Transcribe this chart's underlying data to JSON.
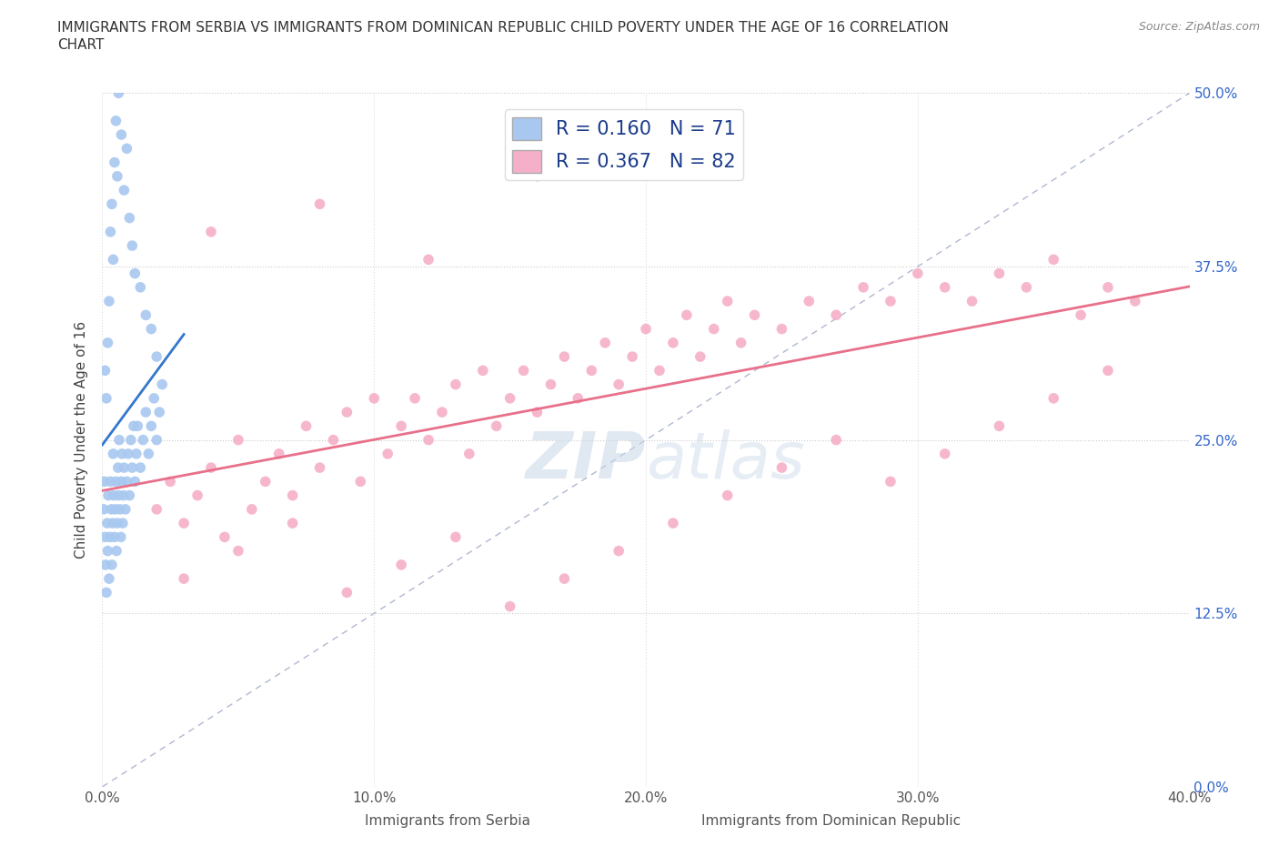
{
  "title_line1": "IMMIGRANTS FROM SERBIA VS IMMIGRANTS FROM DOMINICAN REPUBLIC CHILD POVERTY UNDER THE AGE OF 16 CORRELATION",
  "title_line2": "CHART",
  "source": "Source: ZipAtlas.com",
  "xlabel_serbia": "Immigrants from Serbia",
  "xlabel_dr": "Immigrants from Dominican Republic",
  "ylabel": "Child Poverty Under the Age of 16",
  "xlim": [
    0.0,
    40.0
  ],
  "ylim": [
    0.0,
    50.0
  ],
  "xticks": [
    0.0,
    10.0,
    20.0,
    30.0,
    40.0
  ],
  "yticks": [
    0.0,
    12.5,
    25.0,
    37.5,
    50.0
  ],
  "serbia_R": 0.16,
  "serbia_N": 71,
  "dr_R": 0.367,
  "dr_N": 82,
  "serbia_color": "#a8c8f0",
  "dr_color": "#f5afc8",
  "serbia_line_color": "#3377cc",
  "dr_line_color": "#e8708a",
  "ref_line_color": "#b0b8d0",
  "legend_R_color": "#1a3a8a",
  "serbia_x": [
    0.05,
    0.08,
    0.1,
    0.12,
    0.15,
    0.18,
    0.2,
    0.22,
    0.25,
    0.28,
    0.3,
    0.33,
    0.35,
    0.38,
    0.4,
    0.42,
    0.45,
    0.48,
    0.5,
    0.52,
    0.55,
    0.58,
    0.6,
    0.62,
    0.65,
    0.68,
    0.7,
    0.72,
    0.75,
    0.78,
    0.8,
    0.85,
    0.9,
    0.95,
    1.0,
    1.05,
    1.1,
    1.15,
    1.2,
    1.25,
    1.3,
    1.4,
    1.5,
    1.6,
    1.7,
    1.8,
    1.9,
    2.0,
    2.1,
    2.2,
    0.1,
    0.15,
    0.2,
    0.25,
    0.3,
    0.35,
    0.4,
    0.45,
    0.5,
    0.55,
    0.6,
    0.7,
    0.8,
    0.9,
    1.0,
    1.1,
    1.2,
    1.4,
    1.6,
    1.8,
    2.0
  ],
  "serbia_y": [
    20.0,
    22.0,
    18.0,
    16.0,
    14.0,
    19.0,
    17.0,
    21.0,
    15.0,
    18.0,
    22.0,
    20.0,
    16.0,
    19.0,
    24.0,
    21.0,
    18.0,
    20.0,
    22.0,
    17.0,
    19.0,
    23.0,
    21.0,
    25.0,
    20.0,
    18.0,
    22.0,
    24.0,
    19.0,
    21.0,
    23.0,
    20.0,
    22.0,
    24.0,
    21.0,
    25.0,
    23.0,
    26.0,
    22.0,
    24.0,
    26.0,
    23.0,
    25.0,
    27.0,
    24.0,
    26.0,
    28.0,
    25.0,
    27.0,
    29.0,
    30.0,
    28.0,
    32.0,
    35.0,
    40.0,
    42.0,
    38.0,
    45.0,
    48.0,
    44.0,
    50.0,
    47.0,
    43.0,
    46.0,
    41.0,
    39.0,
    37.0,
    36.0,
    34.0,
    33.0,
    31.0
  ],
  "dr_x": [
    2.0,
    2.5,
    3.0,
    3.5,
    4.0,
    4.5,
    5.0,
    5.5,
    6.0,
    6.5,
    7.0,
    7.5,
    8.0,
    8.5,
    9.0,
    9.5,
    10.0,
    10.5,
    11.0,
    11.5,
    12.0,
    12.5,
    13.0,
    13.5,
    14.0,
    14.5,
    15.0,
    15.5,
    16.0,
    16.5,
    17.0,
    17.5,
    18.0,
    18.5,
    19.0,
    19.5,
    20.0,
    20.5,
    21.0,
    21.5,
    22.0,
    22.5,
    23.0,
    23.5,
    24.0,
    25.0,
    26.0,
    27.0,
    28.0,
    29.0,
    30.0,
    31.0,
    32.0,
    33.0,
    34.0,
    35.0,
    36.0,
    37.0,
    38.0,
    3.0,
    5.0,
    7.0,
    9.0,
    11.0,
    13.0,
    15.0,
    17.0,
    19.0,
    21.0,
    23.0,
    25.0,
    27.0,
    29.0,
    31.0,
    33.0,
    35.0,
    37.0,
    4.0,
    8.0,
    12.0,
    16.0,
    20.0
  ],
  "dr_y": [
    20.0,
    22.0,
    19.0,
    21.0,
    23.0,
    18.0,
    25.0,
    20.0,
    22.0,
    24.0,
    21.0,
    26.0,
    23.0,
    25.0,
    27.0,
    22.0,
    28.0,
    24.0,
    26.0,
    28.0,
    25.0,
    27.0,
    29.0,
    24.0,
    30.0,
    26.0,
    28.0,
    30.0,
    27.0,
    29.0,
    31.0,
    28.0,
    30.0,
    32.0,
    29.0,
    31.0,
    33.0,
    30.0,
    32.0,
    34.0,
    31.0,
    33.0,
    35.0,
    32.0,
    34.0,
    33.0,
    35.0,
    34.0,
    36.0,
    35.0,
    37.0,
    36.0,
    35.0,
    37.0,
    36.0,
    38.0,
    34.0,
    36.0,
    35.0,
    15.0,
    17.0,
    19.0,
    14.0,
    16.0,
    18.0,
    13.0,
    15.0,
    17.0,
    19.0,
    21.0,
    23.0,
    25.0,
    22.0,
    24.0,
    26.0,
    28.0,
    30.0,
    40.0,
    42.0,
    38.0,
    44.0,
    45.0
  ]
}
